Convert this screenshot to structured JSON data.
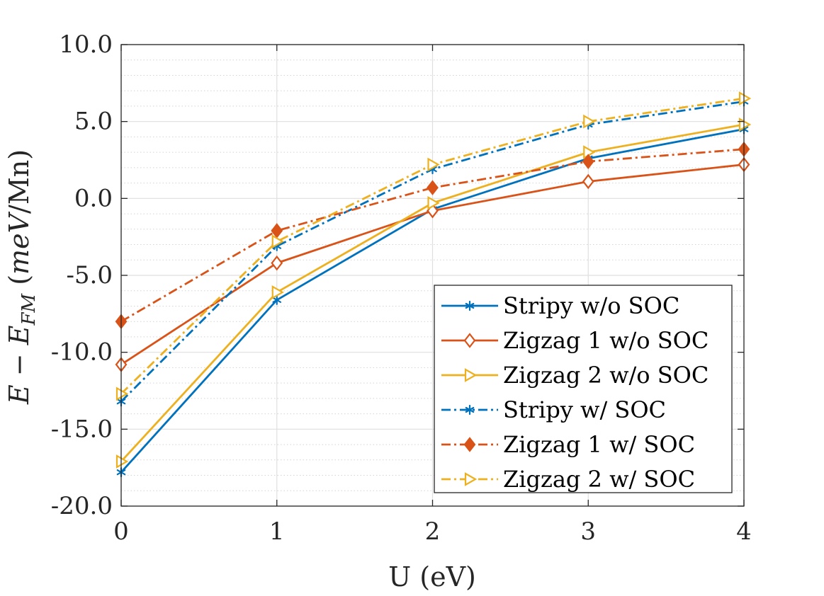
{
  "chart_data": {
    "type": "line",
    "title": "",
    "xlabel": "U (eV)",
    "ylabel_main": "E",
    "ylabel_minus": " − E",
    "ylabel_sub": "FM",
    "ylabel_unit_open": " (",
    "ylabel_unit_italic": "meV",
    "ylabel_unit_rest": "/Mn)",
    "xlim": [
      0,
      4
    ],
    "ylim": [
      -20,
      10
    ],
    "xticks": [
      0,
      1,
      2,
      3,
      4
    ],
    "xtick_labels": [
      "0",
      "1",
      "2",
      "3",
      "4"
    ],
    "yticks": [
      -20,
      -15,
      -10,
      -5,
      0,
      5,
      10
    ],
    "ytick_labels": [
      "-20.0",
      "-15.0",
      "-10.0",
      "-5.0",
      "0.0",
      "5.0",
      "10.0"
    ],
    "grid": true,
    "minor_grid": true,
    "legend_position": "bottom-right",
    "x": [
      0,
      1,
      2,
      3,
      4
    ],
    "series": [
      {
        "name": "Stripy w/o SOC",
        "values": [
          -17.8,
          -6.6,
          -0.7,
          2.6,
          4.5
        ],
        "color": "#0072BD",
        "dash": "solid",
        "marker": "star"
      },
      {
        "name": "Zigzag 1 w/o SOC",
        "values": [
          -10.8,
          -4.2,
          -0.8,
          1.1,
          2.2
        ],
        "color": "#D95319",
        "dash": "solid",
        "marker": "diamond-open"
      },
      {
        "name": "Zigzag 2 w/o SOC",
        "values": [
          -17.1,
          -6.1,
          -0.3,
          3.0,
          4.8
        ],
        "color": "#EDB120",
        "dash": "solid",
        "marker": "triangle-right-open"
      },
      {
        "name": "Stripy w/ SOC",
        "values": [
          -13.2,
          -3.1,
          1.9,
          4.8,
          6.3
        ],
        "color": "#0072BD",
        "dash": "dashdot",
        "marker": "star"
      },
      {
        "name": "Zigzag 1 w/ SOC",
        "values": [
          -8.0,
          -2.1,
          0.7,
          2.4,
          3.2
        ],
        "color": "#D95319",
        "dash": "dashdot",
        "marker": "diamond-filled"
      },
      {
        "name": "Zigzag 2 w/ SOC",
        "values": [
          -12.7,
          -2.8,
          2.2,
          5.0,
          6.5
        ],
        "color": "#EDB120",
        "dash": "dashdot",
        "marker": "triangle-right-open"
      }
    ]
  }
}
